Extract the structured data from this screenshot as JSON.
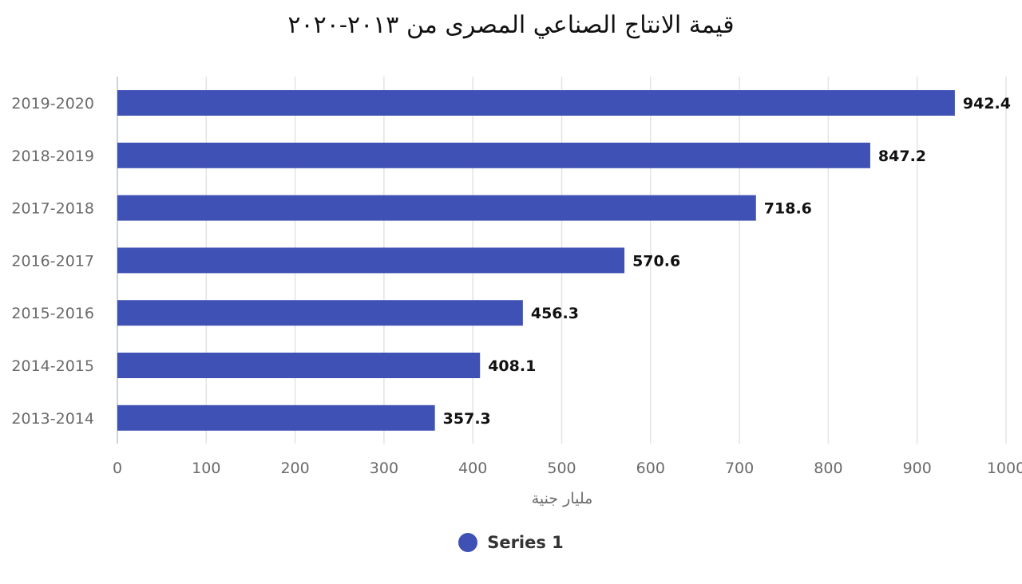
{
  "chart_data": {
    "type": "bar",
    "orientation": "horizontal",
    "title": "قيمة الانتاج الصناعي المصرى من ٢٠١٣-٢٠٢٠",
    "xlabel": "مليار جنية",
    "ylabel": "",
    "xlim": [
      0,
      1000
    ],
    "xticks": [
      "0",
      "100",
      "200",
      "300",
      "400",
      "500",
      "600",
      "700",
      "800",
      "900",
      "1000"
    ],
    "grid": "vertical",
    "legend_position": "bottom-center",
    "bar_color": "#3f51b5",
    "categories": [
      "2019-2020",
      "2018-2019",
      "2017-2018",
      "2016-2017",
      "2015-2016",
      "2014-2015",
      "2013-2014"
    ],
    "series": [
      {
        "name": "Series 1",
        "values": [
          942.4,
          847.2,
          718.6,
          570.6,
          456.3,
          408.1,
          357.3
        ],
        "value_labels": [
          "942.4",
          "847.2",
          "718.6",
          "570.6",
          "456.3",
          "408.1",
          "357.3"
        ]
      }
    ]
  }
}
